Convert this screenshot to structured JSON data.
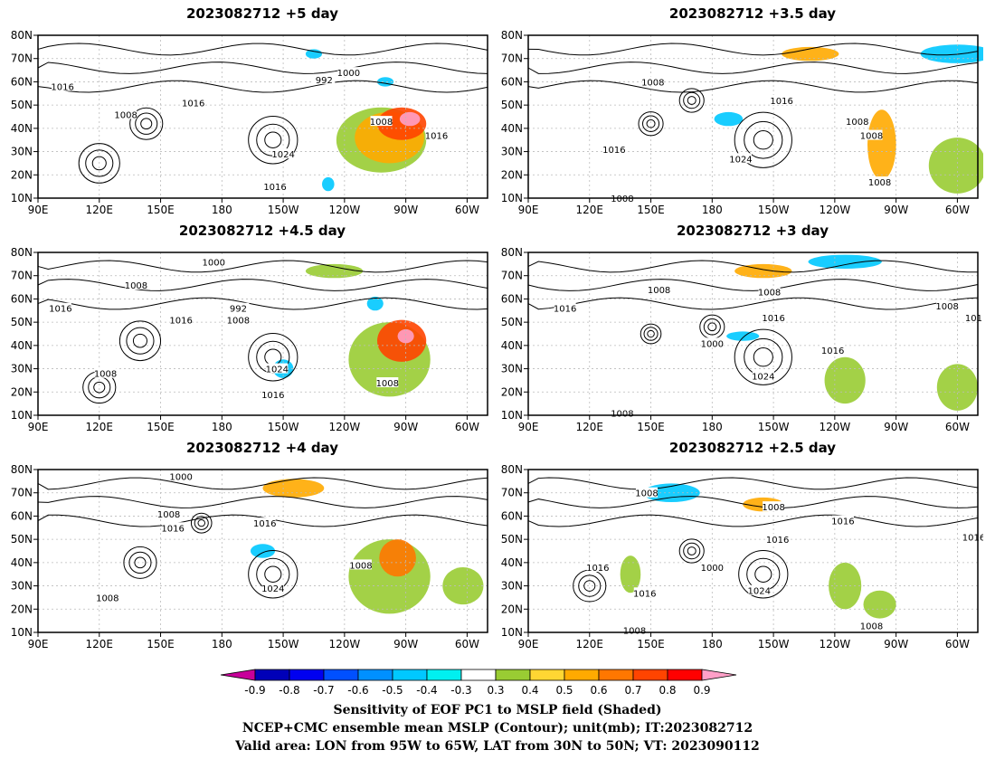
{
  "panels": [
    {
      "title": "2023082712  +5 day",
      "contours": [
        {
          "text": "992",
          "lon": 230,
          "lat": 61
        },
        {
          "text": "1000",
          "lon": 242,
          "lat": 64
        },
        {
          "text": "1016",
          "lon": 102,
          "lat": 58
        },
        {
          "text": "1008",
          "lon": 133,
          "lat": 46
        },
        {
          "text": "1016",
          "lon": 166,
          "lat": 51
        },
        {
          "text": "1024",
          "lon": 210,
          "lat": 29
        },
        {
          "text": "1016",
          "lon": 206,
          "lat": 15
        },
        {
          "text": "1008",
          "lon": 258,
          "lat": 43
        },
        {
          "text": "1016",
          "lon": 285,
          "lat": 37
        }
      ]
    },
    {
      "title": "2023082712  +3.5 day",
      "contours": [
        {
          "text": "1008",
          "lon": 151,
          "lat": 60
        },
        {
          "text": "1016",
          "lon": 214,
          "lat": 52
        },
        {
          "text": "1024",
          "lon": 194,
          "lat": 27
        },
        {
          "text": "1016",
          "lon": 132,
          "lat": 31
        },
        {
          "text": "1008",
          "lon": 251,
          "lat": 43
        },
        {
          "text": "1008",
          "lon": 258,
          "lat": 37
        },
        {
          "text": "1008",
          "lon": 262,
          "lat": 17
        },
        {
          "text": "1008",
          "lon": 136,
          "lat": 10
        }
      ]
    },
    {
      "title": "2023082712  +4.5 day",
      "contours": [
        {
          "text": "1000",
          "lon": 176,
          "lat": 76
        },
        {
          "text": "1008",
          "lon": 138,
          "lat": 66
        },
        {
          "text": "992",
          "lon": 188,
          "lat": 56
        },
        {
          "text": "1008",
          "lon": 188,
          "lat": 51
        },
        {
          "text": "1016",
          "lon": 101,
          "lat": 56
        },
        {
          "text": "1016",
          "lon": 160,
          "lat": 51
        },
        {
          "text": "1024",
          "lon": 207,
          "lat": 30
        },
        {
          "text": "1016",
          "lon": 205,
          "lat": 19
        },
        {
          "text": "1008",
          "lon": 123,
          "lat": 28
        },
        {
          "text": "1008",
          "lon": 261,
          "lat": 24
        }
      ]
    },
    {
      "title": "2023082712  +3 day",
      "contours": [
        {
          "text": "1008",
          "lon": 154,
          "lat": 64
        },
        {
          "text": "1016",
          "lon": 108,
          "lat": 56
        },
        {
          "text": "1008",
          "lon": 208,
          "lat": 63
        },
        {
          "text": "1016",
          "lon": 210,
          "lat": 52
        },
        {
          "text": "1000",
          "lon": 180,
          "lat": 41
        },
        {
          "text": "1024",
          "lon": 205,
          "lat": 27
        },
        {
          "text": "1016",
          "lon": 239,
          "lat": 38
        },
        {
          "text": "1008",
          "lon": 295,
          "lat": 57
        },
        {
          "text": "101",
          "lon": 308,
          "lat": 52
        },
        {
          "text": "1008",
          "lon": 136,
          "lat": 11
        }
      ]
    },
    {
      "title": "2023082712  +4 day",
      "contours": [
        {
          "text": "1000",
          "lon": 160,
          "lat": 77
        },
        {
          "text": "1008",
          "lon": 154,
          "lat": 61
        },
        {
          "text": "1016",
          "lon": 156,
          "lat": 55
        },
        {
          "text": "1016",
          "lon": 201,
          "lat": 57
        },
        {
          "text": "1024",
          "lon": 205,
          "lat": 29
        },
        {
          "text": "1008",
          "lon": 124,
          "lat": 25
        },
        {
          "text": "1008",
          "lon": 248,
          "lat": 39
        }
      ]
    },
    {
      "title": "2023082712  +2.5 day",
      "contours": [
        {
          "text": "1008",
          "lon": 148,
          "lat": 70
        },
        {
          "text": "1008",
          "lon": 210,
          "lat": 64
        },
        {
          "text": "1016",
          "lon": 212,
          "lat": 50
        },
        {
          "text": "1016",
          "lon": 244,
          "lat": 58
        },
        {
          "text": "1000",
          "lon": 180,
          "lat": 38
        },
        {
          "text": "1016",
          "lon": 124,
          "lat": 38
        },
        {
          "text": "1024",
          "lon": 203,
          "lat": 28
        },
        {
          "text": "1016",
          "lon": 147,
          "lat": 27
        },
        {
          "text": "1008",
          "lon": 258,
          "lat": 13
        },
        {
          "text": "1016",
          "lon": 308,
          "lat": 51
        },
        {
          "text": "1008",
          "lon": 142,
          "lat": 11
        }
      ]
    }
  ],
  "axes": {
    "lon_ticks": [
      "90E",
      "120E",
      "150E",
      "180",
      "150W",
      "120W",
      "90W",
      "60W"
    ],
    "lat_ticks": [
      "10N",
      "20N",
      "30N",
      "40N",
      "50N",
      "60N",
      "70N",
      "80N"
    ],
    "lon_range_deg": [
      90,
      310
    ],
    "lat_range_deg": [
      10,
      80
    ]
  },
  "colorbar": {
    "labels": [
      "-0.9",
      "-0.8",
      "-0.7",
      "-0.6",
      "-0.5",
      "-0.4",
      "-0.3",
      "0.3",
      "0.4",
      "0.5",
      "0.6",
      "0.7",
      "0.8",
      "0.9"
    ],
    "colors": [
      "#c8009a",
      "#0000b8",
      "#0000f0",
      "#0050ff",
      "#0090ff",
      "#00c8ff",
      "#00f0f0",
      "#ffffff",
      "#99cc33",
      "#ffd633",
      "#ffaa00",
      "#ff7700",
      "#ff4400",
      "#ff0000",
      "#ffa0c8"
    ]
  },
  "footer": {
    "line1": "Sensitivity of EOF PC1 to MSLP field (Shaded)",
    "line2": "NCEP+CMC ensemble mean MSLP (Contour); unit(mb); IT:2023082712",
    "line3": "Valid area: LON from 95W to 65W, LAT from 30N to 50N; VT: 2023090112"
  }
}
